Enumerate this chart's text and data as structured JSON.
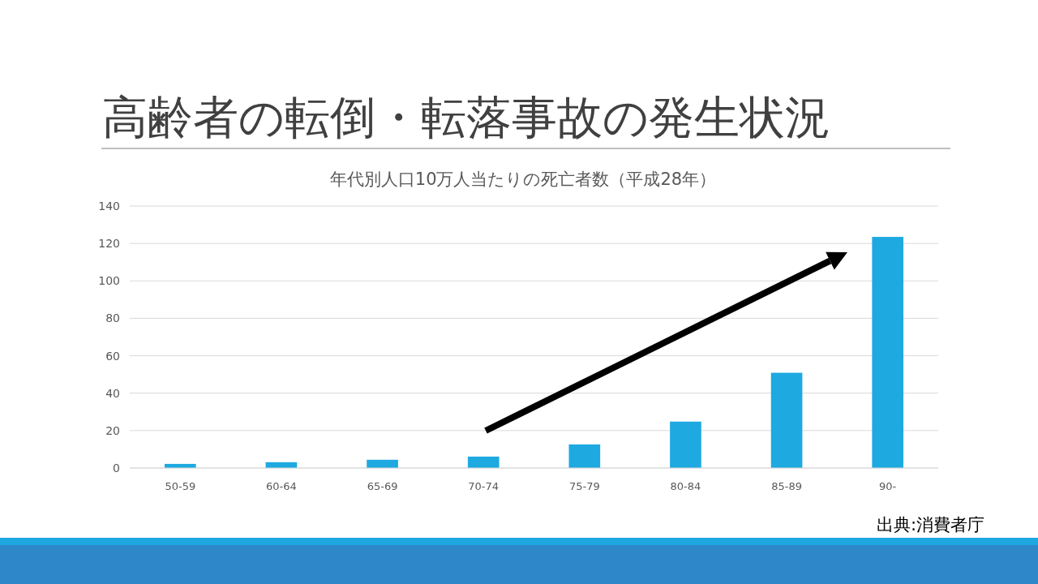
{
  "chart_data": {
    "type": "bar",
    "title": "高齢者の転倒・転落事故の発生状況",
    "subtitle": "年代別人口10万人当たりの死亡者数（平成28年）",
    "categories": [
      "50-59",
      "60-64",
      "65-69",
      "70-74",
      "75-79",
      "80-84",
      "85-89",
      "90-"
    ],
    "values": [
      2.2,
      3.1,
      4.4,
      6.1,
      12.6,
      24.8,
      50.9,
      123.5
    ],
    "color": "#1ea9e1",
    "ylim": [
      0,
      140
    ],
    "yticks": [
      0,
      20,
      40,
      60,
      80,
      100,
      120,
      140
    ],
    "grid": "y",
    "annotations": [
      "出典:消費者庁"
    ]
  }
}
